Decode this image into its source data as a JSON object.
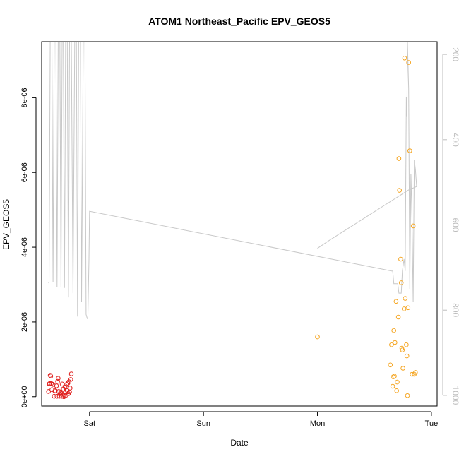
{
  "chart_data": {
    "type": "scatter",
    "title": "ATOM1 Northeast_Pacific EPV_GEOS5",
    "xlabel": "Date",
    "ylabel": "EPV_GEOS5",
    "y2label": "",
    "x_unit": "days",
    "xlim": [
      -0.42,
      3.05
    ],
    "ylim": [
      -2.5e-07,
      9.5e-06
    ],
    "y2lim": [
      1025,
      170
    ],
    "x_ticks": [
      {
        "value": 0,
        "label": "Sat"
      },
      {
        "value": 1,
        "label": "Sun"
      },
      {
        "value": 2,
        "label": "Mon"
      },
      {
        "value": 3,
        "label": "Tue"
      }
    ],
    "y_ticks": [
      {
        "value": 0,
        "label": "0e+00"
      },
      {
        "value": 2e-06,
        "label": "2e-06"
      },
      {
        "value": 4e-06,
        "label": "4e-06"
      },
      {
        "value": 6e-06,
        "label": "6e-06"
      },
      {
        "value": 8e-06,
        "label": "8e-06"
      }
    ],
    "y2_ticks": [
      {
        "value": 200,
        "label": "200"
      },
      {
        "value": 400,
        "label": "400"
      },
      {
        "value": 600,
        "label": "600"
      },
      {
        "value": 800,
        "label": "800"
      },
      {
        "value": 1000,
        "label": "1000"
      }
    ],
    "series": [
      {
        "color": "#e0211f",
        "marker": "open-circle",
        "points": [
          [
            -0.36,
            1.4e-07
          ],
          [
            -0.355,
            3.4e-07
          ],
          [
            -0.35,
            3.5e-07
          ],
          [
            -0.345,
            5.7e-07
          ],
          [
            -0.34,
            5.5e-07
          ],
          [
            -0.335,
            3.5e-07
          ],
          [
            -0.33,
            1.9e-07
          ],
          [
            -0.32,
            3.3e-07
          ],
          [
            -0.31,
            1e-08
          ],
          [
            -0.305,
            1.5e-07
          ],
          [
            -0.3,
            1.6e-07
          ],
          [
            -0.29,
            2.9e-07
          ],
          [
            -0.285,
            1e-08
          ],
          [
            -0.28,
            4.1e-07
          ],
          [
            -0.275,
            4.9e-07
          ],
          [
            -0.27,
            1.4e-07
          ],
          [
            -0.265,
            1e-08
          ],
          [
            -0.26,
            7e-08
          ],
          [
            -0.255,
            1e-07
          ],
          [
            -0.25,
            1.2e-07
          ],
          [
            -0.245,
            1e-08
          ],
          [
            -0.24,
            3.4e-07
          ],
          [
            -0.235,
            1.8e-07
          ],
          [
            -0.23,
            2.1e-07
          ],
          [
            -0.225,
            0.0
          ],
          [
            -0.22,
            4e-08
          ],
          [
            -0.215,
            2.6e-07
          ],
          [
            -0.21,
            1.1e-07
          ],
          [
            -0.205,
            4e-08
          ],
          [
            -0.2,
            3.3e-07
          ],
          [
            -0.195,
            1.6e-07
          ],
          [
            -0.19,
            3.6e-07
          ],
          [
            -0.185,
            8e-08
          ],
          [
            -0.18,
            4e-07
          ],
          [
            -0.175,
            1.3e-07
          ],
          [
            -0.17,
            2.3e-07
          ],
          [
            -0.165,
            4.6e-07
          ],
          [
            -0.16,
            6.1e-07
          ]
        ]
      },
      {
        "color": "#f5a623",
        "marker": "open-circle",
        "points": [
          [
            2.0,
            1.6e-06
          ],
          [
            2.64,
            8.5e-07
          ],
          [
            2.65,
            1.39e-06
          ],
          [
            2.66,
            2.8e-07
          ],
          [
            2.665,
            5.3e-07
          ],
          [
            2.67,
            1.77e-06
          ],
          [
            2.675,
            5.5e-07
          ],
          [
            2.68,
            1.45e-06
          ],
          [
            2.69,
            2.55e-06
          ],
          [
            2.695,
            1.6e-07
          ],
          [
            2.7,
            3.9e-07
          ],
          [
            2.71,
            2.13e-06
          ],
          [
            2.715,
            6.37e-06
          ],
          [
            2.72,
            5.52e-06
          ],
          [
            2.73,
            3.68e-06
          ],
          [
            2.735,
            3.05e-06
          ],
          [
            2.74,
            1.3e-06
          ],
          [
            2.745,
            1.25e-06
          ],
          [
            2.75,
            7.6e-07
          ],
          [
            2.76,
            2.35e-06
          ],
          [
            2.765,
            9.06e-06
          ],
          [
            2.77,
            2.63e-06
          ],
          [
            2.78,
            1.39e-06
          ],
          [
            2.785,
            1.09e-06
          ],
          [
            2.79,
            3e-08
          ],
          [
            2.795,
            2.38e-06
          ],
          [
            2.8,
            8.94e-06
          ],
          [
            2.81,
            6.58e-06
          ],
          [
            2.83,
            6e-07
          ],
          [
            2.84,
            4.57e-06
          ],
          [
            2.85,
            6e-07
          ],
          [
            2.86,
            6.5e-07
          ]
        ]
      }
    ],
    "pressure_line": {
      "color": "#c8c8c8",
      "axis": "right",
      "points": [
        [
          -0.36,
          735
        ],
        [
          -0.355,
          737
        ],
        [
          -0.345,
          170
        ],
        [
          -0.33,
          170
        ],
        [
          -0.32,
          735
        ],
        [
          -0.31,
          170
        ],
        [
          -0.295,
          170
        ],
        [
          -0.285,
          745
        ],
        [
          -0.275,
          170
        ],
        [
          -0.26,
          170
        ],
        [
          -0.25,
          745
        ],
        [
          -0.24,
          170
        ],
        [
          -0.23,
          170
        ],
        [
          -0.22,
          748
        ],
        [
          -0.21,
          170
        ],
        [
          -0.195,
          170
        ],
        [
          -0.185,
          770
        ],
        [
          -0.175,
          170
        ],
        [
          -0.16,
          170
        ],
        [
          -0.145,
          760
        ],
        [
          -0.13,
          170
        ],
        [
          -0.115,
          170
        ],
        [
          -0.105,
          815
        ],
        [
          -0.095,
          170
        ],
        [
          -0.08,
          170
        ],
        [
          -0.07,
          780
        ],
        [
          -0.055,
          170
        ],
        [
          -0.04,
          170
        ],
        [
          -0.03,
          810
        ],
        [
          -0.02,
          820
        ],
        [
          -0.015,
          820
        ],
        [
          -0.005,
          680
        ],
        [
          0.0,
          568
        ],
        [
          2.65,
          708
        ],
        [
          2.66,
          708
        ],
        [
          2.67,
          738
        ],
        [
          2.69,
          738
        ],
        [
          2.705,
          738
        ],
        [
          2.715,
          760
        ],
        [
          2.735,
          760
        ],
        [
          2.745,
          708
        ],
        [
          2.76,
          680
        ],
        [
          2.77,
          708
        ],
        [
          2.78,
          300
        ],
        [
          2.785,
          345
        ],
        [
          2.79,
          170
        ],
        [
          2.8,
          280
        ],
        [
          2.81,
          750
        ],
        [
          2.82,
          480
        ],
        [
          2.83,
          590
        ],
        [
          2.84,
          780
        ],
        [
          2.85,
          448
        ],
        [
          2.86,
          470
        ],
        [
          2.87,
          510
        ],
        [
          2.8,
          518
        ],
        [
          2.7,
          535
        ],
        [
          2.6,
          552
        ],
        [
          2.5,
          569
        ],
        [
          2.4,
          586
        ],
        [
          2.3,
          603
        ],
        [
          2.2,
          620
        ],
        [
          2.1,
          637
        ],
        [
          2.0,
          655
        ]
      ]
    }
  }
}
